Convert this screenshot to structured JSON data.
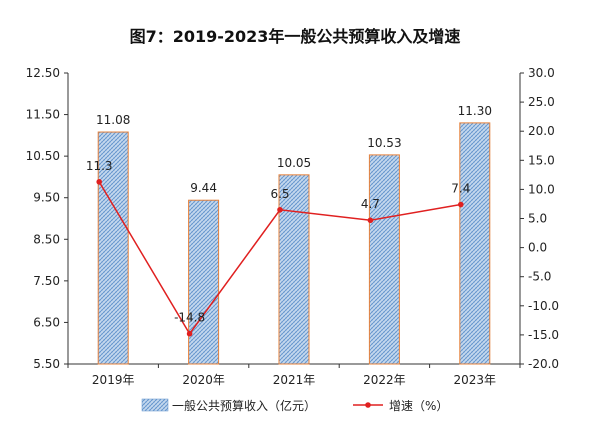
{
  "chart_data": {
    "type": "bar",
    "title": "图7：2019-2023年一般公共预算收入及增速",
    "categories": [
      "2019年",
      "2020年",
      "2021年",
      "2022年",
      "2023年"
    ],
    "series": [
      {
        "name": "一般公共预算收入（亿元）",
        "type": "bar",
        "axis": "left",
        "values": [
          11.08,
          9.44,
          10.05,
          10.53,
          11.3
        ],
        "labels": [
          "11.08",
          "9.44",
          "10.05",
          "10.53",
          "11.30"
        ]
      },
      {
        "name": "增速（%）",
        "type": "line",
        "axis": "right",
        "values": [
          11.3,
          -14.8,
          6.5,
          4.7,
          7.4
        ],
        "labels": [
          "11.3",
          "-14.8",
          "6.5",
          "4.7",
          "7.4"
        ]
      }
    ],
    "y_left": {
      "min": 5.5,
      "max": 12.5,
      "ticks": [
        "5.50",
        "6.50",
        "7.50",
        "8.50",
        "9.50",
        "10.50",
        "11.50",
        "12.50"
      ]
    },
    "y_right": {
      "min": -20,
      "max": 30,
      "ticks": [
        "-20.0",
        "-15.0",
        "-10.0",
        "-5.0",
        "0.0",
        "5.0",
        "10.0",
        "15.0",
        "20.0",
        "25.0",
        "30.0"
      ]
    },
    "grid": false,
    "legend_position": "bottom",
    "colors": {
      "bar_fill": "#a9c6e6",
      "bar_stroke": "#e5803a",
      "bar_pattern": "#5b8fc9",
      "line": "#e02020",
      "axis": "#333333"
    }
  }
}
